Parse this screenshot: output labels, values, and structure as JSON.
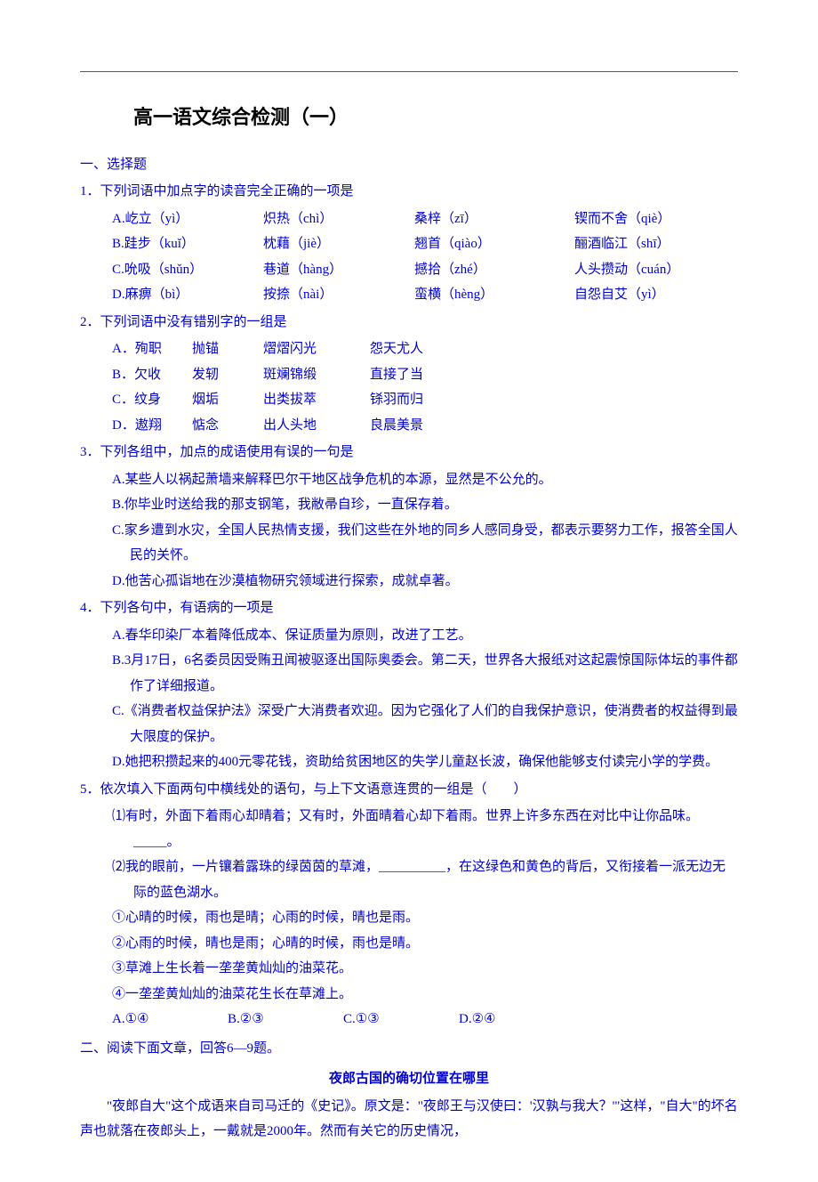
{
  "title": "高一语文综合检测（一）",
  "sec1": "一、选择题",
  "q1": {
    "stem": "1．下列词语中加点字的读音完全正确的一项是",
    "a": [
      "A.屹立（yì）",
      "炽热（chì）",
      "桑梓（zī）",
      "锲而不舍（qiè）"
    ],
    "b": [
      "B.跬步（kuǐ）",
      "枕藉（jiè）",
      "翘首（qiào）",
      "酾酒临江（shī）"
    ],
    "c": [
      "C.吮吸（shǔn）",
      "巷道（hàng）",
      "撼拾（zhé）",
      "人头攒动（cuán）"
    ],
    "d": [
      "D.麻痹（bì）",
      "按捺（nài）",
      "蛮横（hèng）",
      "自怨自艾（yì）"
    ]
  },
  "q2": {
    "stem": "2．下列词语中没有错别字的一组是",
    "a": [
      "A．殉职",
      "抛锚",
      "熠熠闪光",
      "怨天尤人"
    ],
    "b": [
      "B．欠收",
      "发轫",
      "斑斓锦缎",
      "直接了当"
    ],
    "c": [
      "C．纹身",
      "烟垢",
      "出类拔萃",
      "铩羽而归"
    ],
    "d": [
      "D．遨翔",
      "惦念",
      "出人头地",
      "良晨美景"
    ]
  },
  "q3": {
    "stem": "3．下列各组中，加点的成语使用有误的一句是",
    "a": "A.某些人以祸起萧墙来解释巴尔干地区战争危机的本源，显然是不公允的。",
    "b": "B.你毕业时送给我的那支钢笔，我敝帚自珍，一直保存着。",
    "c": "C.家乡遭到水灾，全国人民热情支援，我们这些在外地的同乡人感同身受，都表示要努力工作，报答全国人民的关怀。",
    "d": "D.他苦心孤诣地在沙漠植物研究领域进行探索，成就卓著。"
  },
  "q4": {
    "stem": "4．下列各句中，有语病的一项是",
    "a": "A.春华印染厂本着降低成本、保证质量为原则，改进了工艺。",
    "b": "B.3月17日，6名委员因受贿丑闻被驱逐出国际奥委会。第二天，世界各大报纸对这起震惊国际体坛的事件都作了详细报道。",
    "c": "C.《消费者权益保护法》深受广大消费者欢迎。因为它强化了人们的自我保护意识，使消费者的权益得到最大限度的保护。",
    "d": "D.她把积攒起来的400元零花钱，资助给贫困地区的失学儿童赵长波，确保他能够支付读完小学的学费。"
  },
  "q5": {
    "stem": "5．依次填入下面两句中横线处的语句，与上下文语意连贯的一组是（　　）",
    "s1": "⑴有时，外面下着雨心却晴着；又有时，外面晴着心却下着雨。世界上许多东西在对比中让你品味。_____。",
    "s2": "⑵我的眼前，一片镶着露珠的绿茵茵的草滩，__________，在这绿色和黄色的背后，又衔接着一派无边无际的蓝色湖水。",
    "i1": "①心晴的时候，雨也是晴；心雨的时候，晴也是雨。",
    "i2": "②心雨的时候，晴也是雨；心晴的时候，雨也是晴。",
    "i3": "③草滩上生长着一垄垄黄灿灿的油菜花。",
    "i4": "④一垄垄黄灿灿的油菜花生长在草滩上。",
    "opts": [
      "A.①④",
      "B.②③",
      "C.①③",
      "D.②④"
    ]
  },
  "sec2": "二、阅读下面文章，回答6—9题。",
  "ptitle": "夜郎古国的确切位置在哪里",
  "p1": "\"夜郎自大\"这个成语来自司马迁的《史记》。原文是：\"夜郎王与汉使曰：'汉孰与我大？'\"这样，\"自大\"的坏名声也就落在夜郎头上，一戴就是2000年。然而有关它的历史情况，"
}
